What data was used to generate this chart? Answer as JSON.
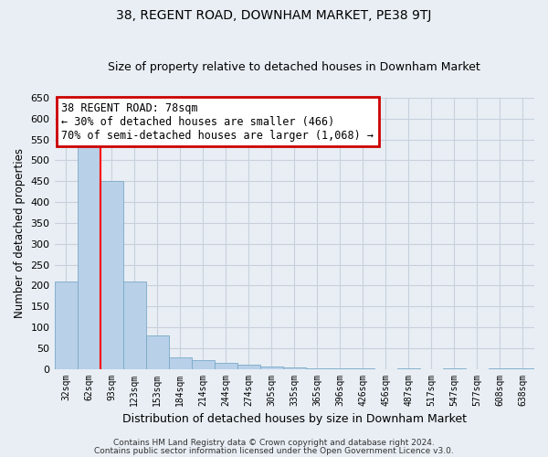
{
  "title": "38, REGENT ROAD, DOWNHAM MARKET, PE38 9TJ",
  "subtitle": "Size of property relative to detached houses in Downham Market",
  "xlabel": "Distribution of detached houses by size in Downham Market",
  "ylabel": "Number of detached properties",
  "categories": [
    "32sqm",
    "62sqm",
    "93sqm",
    "123sqm",
    "153sqm",
    "184sqm",
    "214sqm",
    "244sqm",
    "274sqm",
    "305sqm",
    "335sqm",
    "365sqm",
    "396sqm",
    "426sqm",
    "456sqm",
    "487sqm",
    "517sqm",
    "547sqm",
    "577sqm",
    "608sqm",
    "638sqm"
  ],
  "values": [
    210,
    535,
    450,
    210,
    80,
    28,
    20,
    15,
    10,
    5,
    3,
    2,
    1,
    1,
    0,
    1,
    0,
    1,
    0,
    1,
    1
  ],
  "bar_color": "#b8d0e8",
  "bar_edge_color": "#7aaac8",
  "annotation_title": "38 REGENT ROAD: 78sqm",
  "annotation_line1": "← 30% of detached houses are smaller (466)",
  "annotation_line2": "70% of semi-detached houses are larger (1,068) →",
  "annotation_box_facecolor": "#ffffff",
  "annotation_box_edgecolor": "#cc0000",
  "ylim": [
    0,
    650
  ],
  "yticks": [
    0,
    50,
    100,
    150,
    200,
    250,
    300,
    350,
    400,
    450,
    500,
    550,
    600,
    650
  ],
  "footer1": "Contains HM Land Registry data © Crown copyright and database right 2024.",
  "footer2": "Contains public sector information licensed under the Open Government Licence v3.0.",
  "bg_color": "#e8eef4",
  "grid_color": "#c8d0dc"
}
